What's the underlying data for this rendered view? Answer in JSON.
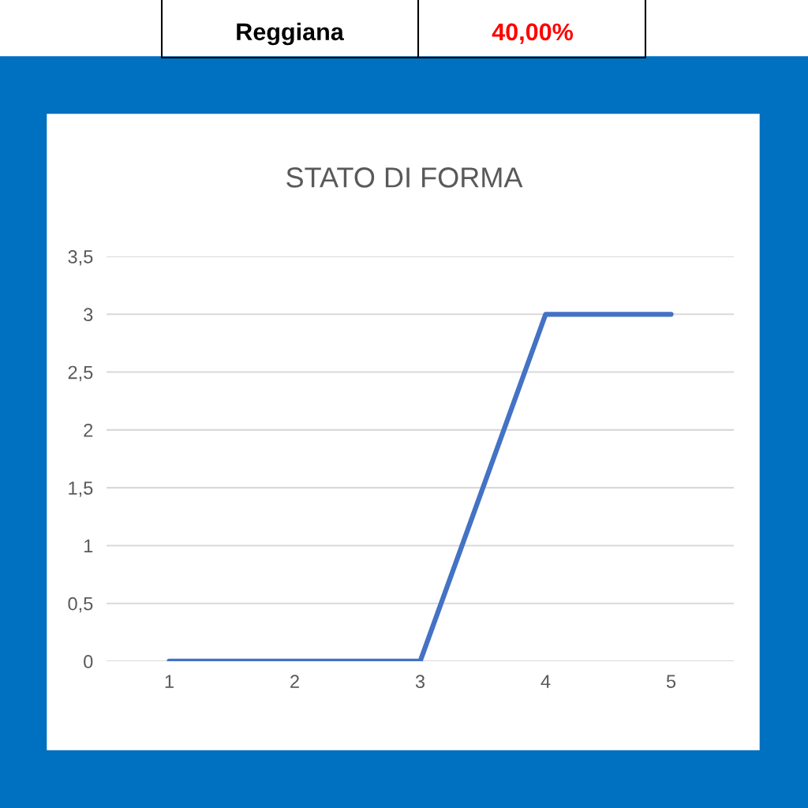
{
  "chart_data": {
    "type": "line",
    "title": "STATO DI FORMA",
    "annotations": [
      "Reggiana",
      "40,00%"
    ],
    "categories": [
      "1",
      "2",
      "3",
      "4",
      "5"
    ],
    "series": [
      {
        "color": "#4472c4",
        "values": [
          0,
          0,
          0,
          3,
          3
        ]
      }
    ],
    "ylim": [
      0,
      3.5
    ],
    "yticks": [
      {
        "value": 0,
        "label": "0"
      },
      {
        "value": 0.5,
        "label": "0,5"
      },
      {
        "value": 1,
        "label": "1"
      },
      {
        "value": 1.5,
        "label": "1,5"
      },
      {
        "value": 2,
        "label": "2"
      },
      {
        "value": 2.5,
        "label": "2,5"
      },
      {
        "value": 3,
        "label": "3"
      },
      {
        "value": 3.5,
        "label": "3,5"
      }
    ],
    "grid": "y",
    "legend": false,
    "marker": "none",
    "line_style": "solid"
  }
}
